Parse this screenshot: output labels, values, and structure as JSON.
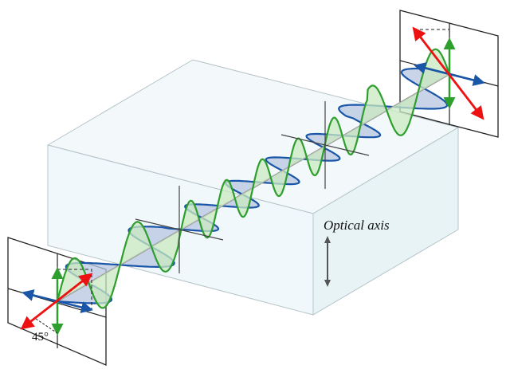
{
  "labels": {
    "optical_axis": "Optical axis",
    "angle": "45°"
  },
  "colors": {
    "ordinary_wave": "#1a56a8",
    "ordinary_fill": "#b7c5e0",
    "extraordinary_wave": "#2e9e2e",
    "extraordinary_fill": "#c9eac0",
    "polarization": "#ee1111",
    "crystal_fill": "#eef7fa",
    "crystal_edge": "#b5c3c8"
  }
}
